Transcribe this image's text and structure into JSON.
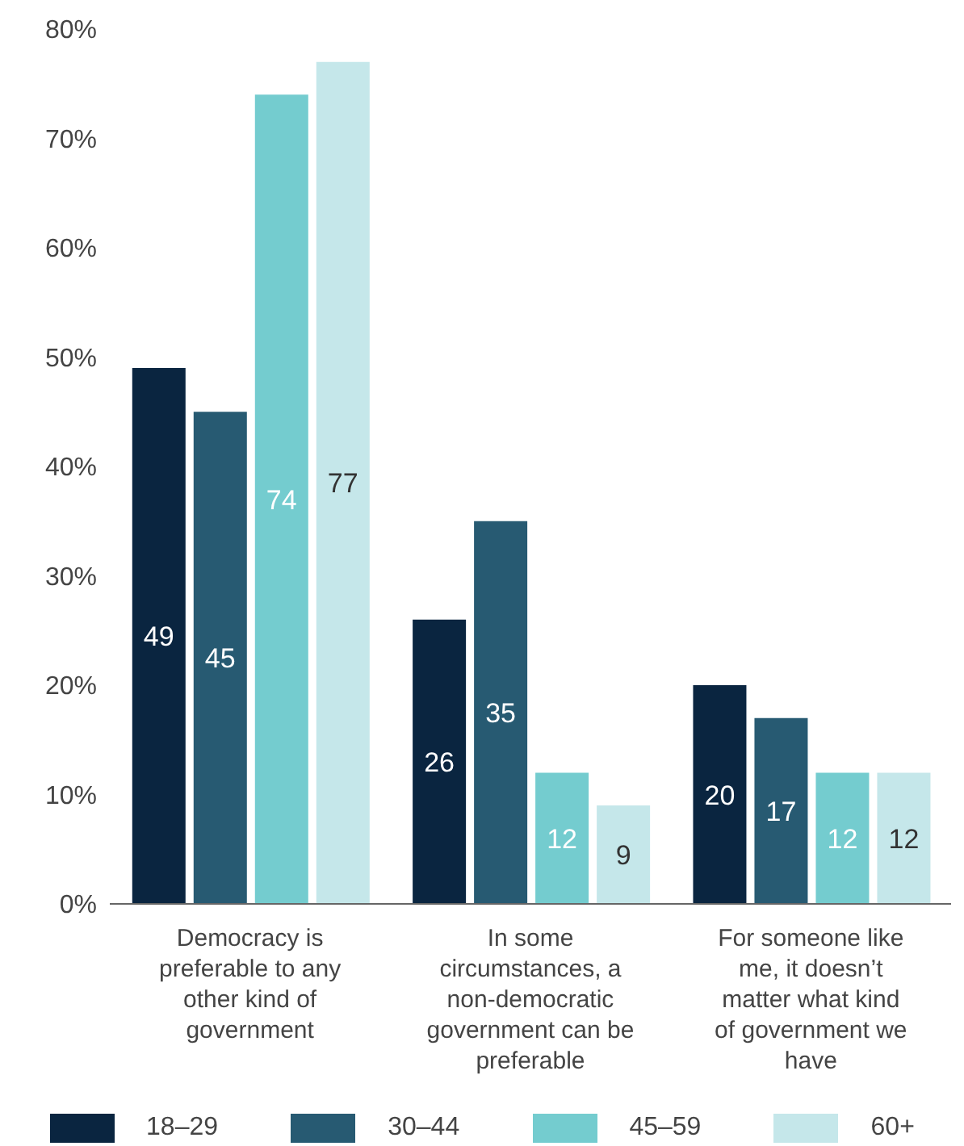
{
  "chart_data": {
    "type": "bar",
    "categories": [
      "Democracy is preferable to any other kind of government",
      "In some circumstances, a non-democratic government can be preferable",
      "For someone like me, it doesn’t matter what kind of government we have"
    ],
    "series": [
      {
        "name": "18–29",
        "color": "#0a2540",
        "values": [
          49,
          26,
          20
        ]
      },
      {
        "name": "30–44",
        "color": "#275a72",
        "values": [
          45,
          35,
          17
        ]
      },
      {
        "name": "45–59",
        "color": "#74cccf",
        "values": [
          74,
          12,
          12
        ]
      },
      {
        "name": "60+",
        "color": "#c5e7ea",
        "values": [
          77,
          9,
          12
        ]
      }
    ],
    "ylim": [
      0,
      80
    ],
    "yticks": [
      {
        "value": 0,
        "label": "0%"
      },
      {
        "value": 10,
        "label": "10%"
      },
      {
        "value": 20,
        "label": "20%"
      },
      {
        "value": 30,
        "label": "30%"
      },
      {
        "value": 40,
        "label": "40%"
      },
      {
        "value": 50,
        "label": "50%"
      },
      {
        "value": 60,
        "label": "60%"
      },
      {
        "value": 70,
        "label": "70%"
      },
      {
        "value": 80,
        "label": "80%"
      }
    ],
    "data_labels": true,
    "grid": false,
    "legend": "bottom"
  }
}
